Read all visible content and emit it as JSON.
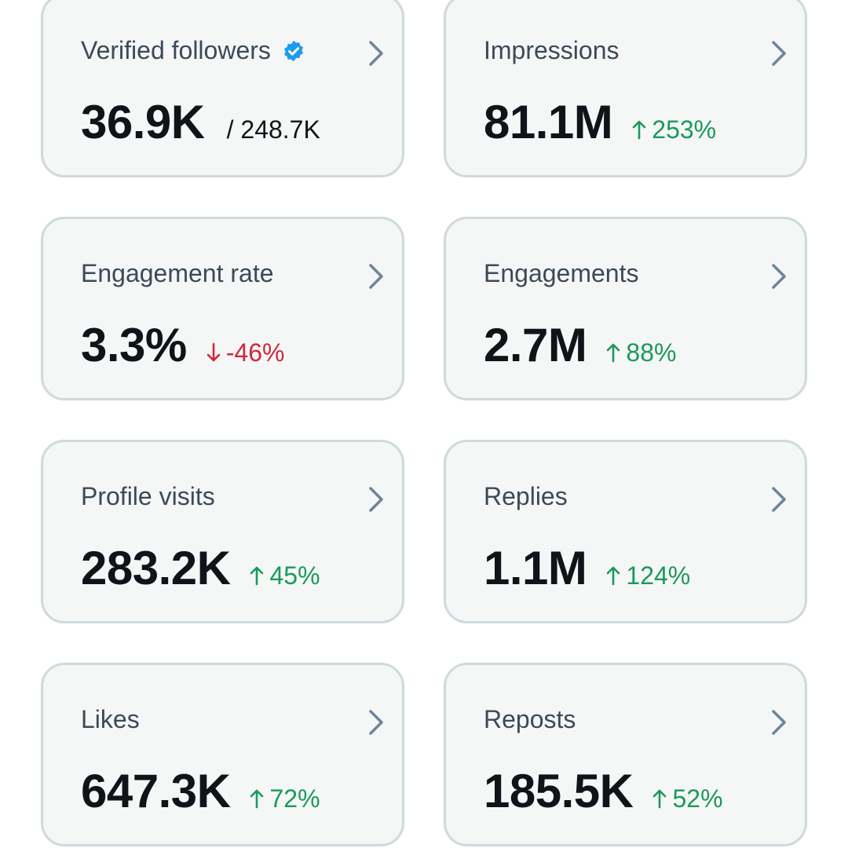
{
  "colors": {
    "positive": "#1a9a5a",
    "negative": "#d0283a",
    "verified_badge": "#1d9bf0"
  },
  "cards": [
    {
      "label": "Verified followers",
      "value": "36.9K",
      "total": "/ 248.7K",
      "icon": "verified-badge-icon"
    },
    {
      "label": "Impressions",
      "value": "81.1M",
      "change": "253%",
      "direction": "up"
    },
    {
      "label": "Engagement rate",
      "value": "3.3%",
      "change": "-46%",
      "direction": "down"
    },
    {
      "label": "Engagements",
      "value": "2.7M",
      "change": "88%",
      "direction": "up"
    },
    {
      "label": "Profile visits",
      "value": "283.2K",
      "change": "45%",
      "direction": "up"
    },
    {
      "label": "Replies",
      "value": "1.1M",
      "change": "124%",
      "direction": "up"
    },
    {
      "label": "Likes",
      "value": "647.3K",
      "change": "72%",
      "direction": "up"
    },
    {
      "label": "Reposts",
      "value": "185.5K",
      "change": "52%",
      "direction": "up"
    }
  ]
}
